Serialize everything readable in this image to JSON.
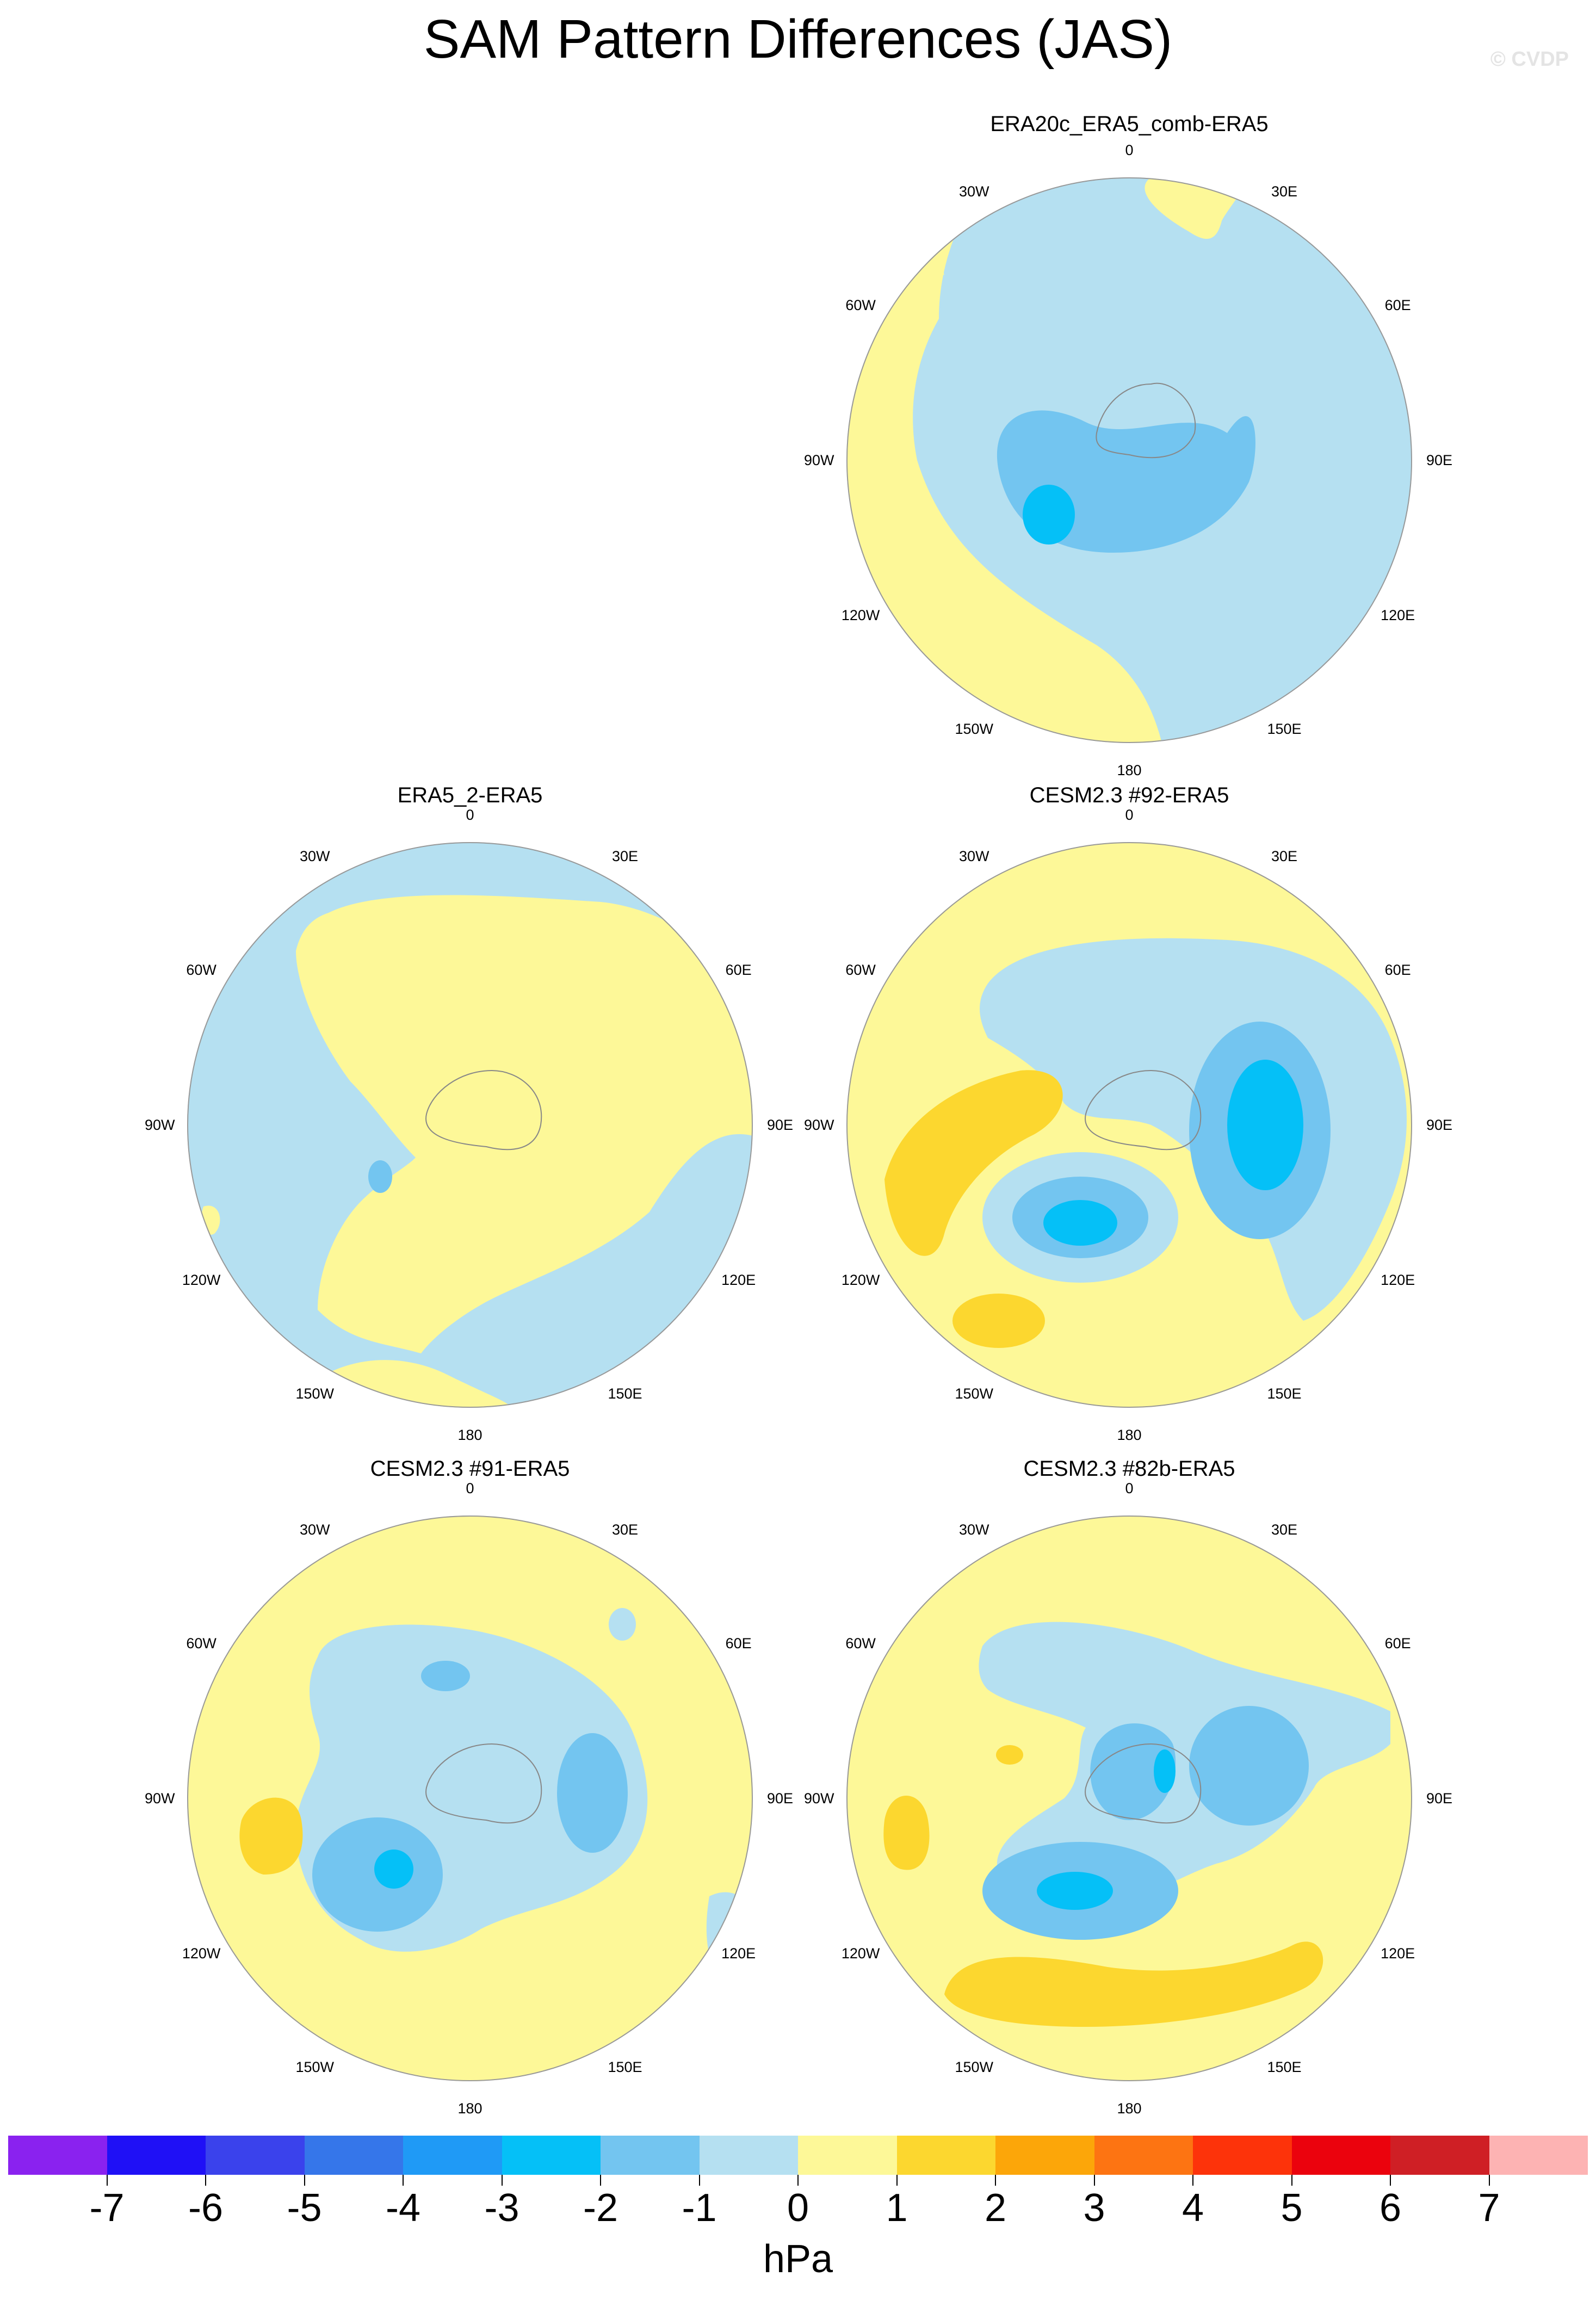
{
  "title": "SAM Pattern Differences (JAS)",
  "watermark": "© CVDP",
  "panels": [
    {
      "title": "ERA20c_ERA5_comb-ERA5",
      "lon_labels": [
        "0",
        "30E",
        "60E",
        "90E",
        "120E",
        "150E",
        "180",
        "150W",
        "120W",
        "90W",
        "60W",
        "30W"
      ]
    },
    {
      "title": "ERA5_2-ERA5",
      "lon_labels": [
        "0",
        "30E",
        "60E",
        "90E",
        "120E",
        "150E",
        "180",
        "150W",
        "120W",
        "90W",
        "60W",
        "30W"
      ]
    },
    {
      "title": "CESM2.3 #92-ERA5",
      "lon_labels": [
        "0",
        "30E",
        "60E",
        "90E",
        "120E",
        "150E",
        "180",
        "150W",
        "120W",
        "90W",
        "60W",
        "30W"
      ]
    },
    {
      "title": "CESM2.3 #91-ERA5",
      "lon_labels": [
        "0",
        "30E",
        "60E",
        "90E",
        "120E",
        "150E",
        "180",
        "150W",
        "120W",
        "90W",
        "60W",
        "30W"
      ]
    },
    {
      "title": "CESM2.3 #82b-ERA5",
      "lon_labels": [
        "0",
        "30E",
        "60E",
        "90E",
        "120E",
        "150E",
        "180",
        "150W",
        "120W",
        "90W",
        "60W",
        "30W"
      ]
    }
  ],
  "legend": {
    "units": "hPa",
    "tick_labels": [
      "-7",
      "-6",
      "-5",
      "-4",
      "-3",
      "-2",
      "-1",
      "0",
      "1",
      "2",
      "3",
      "4",
      "5",
      "6",
      "7"
    ],
    "colors": [
      "#8a22ef",
      "#1f10f6",
      "#3a42ec",
      "#3576ea",
      "#1f9af6",
      "#05c0f7",
      "#73c5f0",
      "#b5e0f1",
      "#fdf898",
      "#fcd72f",
      "#fca609",
      "#fd7412",
      "#fd330a",
      "#eb020d",
      "#cf1f25",
      "#fdb3b3"
    ]
  }
}
